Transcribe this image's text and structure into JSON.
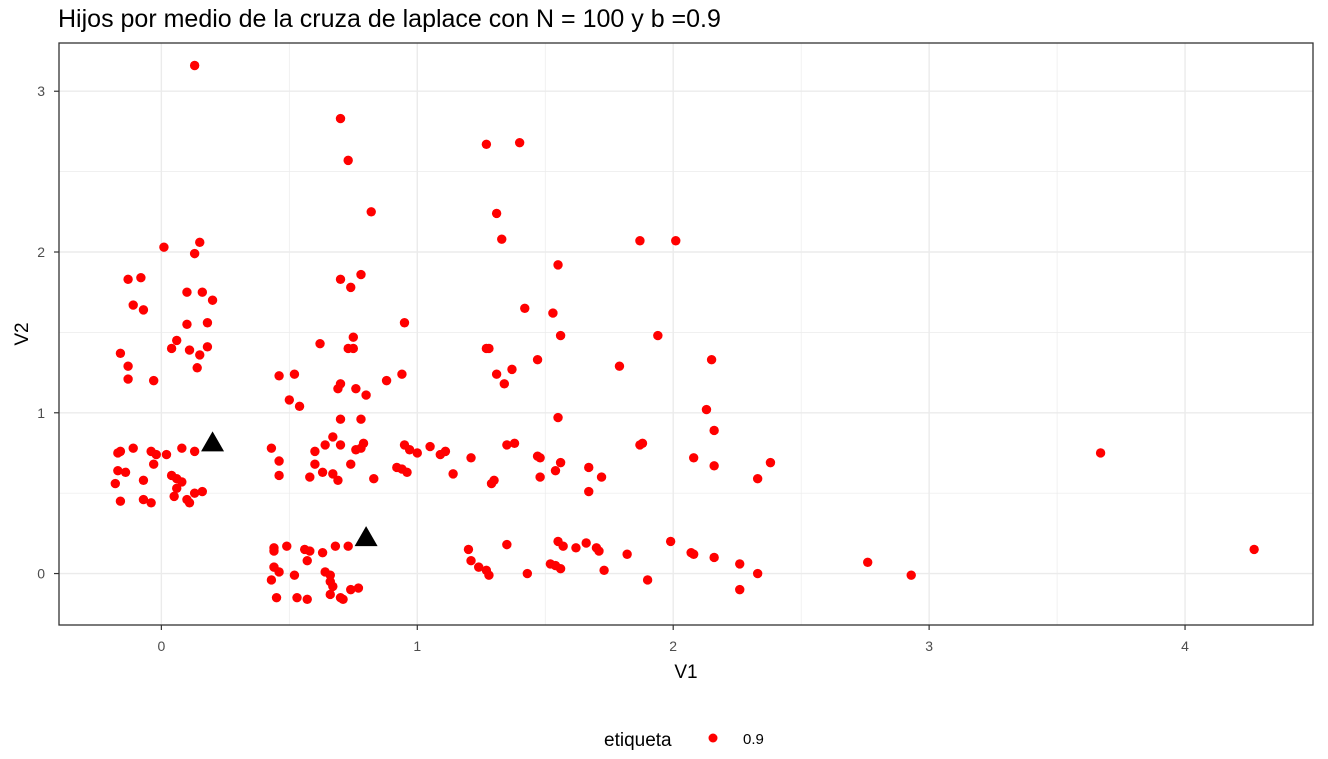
{
  "chart_data": {
    "type": "scatter",
    "title": "Hijos por medio de la cruza de laplace con N = 100 y b =0.9",
    "xlabel": "V1",
    "ylabel": "V2",
    "xlim": [
      -0.4,
      4.5
    ],
    "ylim": [
      -0.32,
      3.3
    ],
    "x_ticks": [
      0,
      1,
      2,
      3,
      4
    ],
    "y_ticks": [
      0,
      1,
      2,
      3
    ],
    "x_tick_labels": [
      "0",
      "1",
      "2",
      "3",
      "4"
    ],
    "y_tick_labels": [
      "0",
      "1",
      "2",
      "3"
    ],
    "grid": true,
    "legend": {
      "title": "etiqueta",
      "position": "bottom",
      "entries": [
        "0.9"
      ]
    },
    "colors": {
      "points": "#ff0000",
      "parents": "#000000",
      "panel_border": "#333333",
      "grid": "#ebebeb"
    },
    "series": [
      {
        "name": "0.9",
        "marker": "circle",
        "color": "#ff0000",
        "points": [
          [
            0.13,
            3.16
          ],
          [
            0.01,
            2.03
          ],
          [
            0.15,
            2.06
          ],
          [
            0.13,
            1.99
          ],
          [
            -0.13,
            1.83
          ],
          [
            -0.08,
            1.84
          ],
          [
            -0.11,
            1.67
          ],
          [
            -0.07,
            1.64
          ],
          [
            0.1,
            1.75
          ],
          [
            0.16,
            1.75
          ],
          [
            0.2,
            1.7
          ],
          [
            0.1,
            1.55
          ],
          [
            0.18,
            1.56
          ],
          [
            0.06,
            1.45
          ],
          [
            0.04,
            1.4
          ],
          [
            0.11,
            1.39
          ],
          [
            0.15,
            1.36
          ],
          [
            0.18,
            1.41
          ],
          [
            0.14,
            1.28
          ],
          [
            -0.16,
            1.37
          ],
          [
            -0.13,
            1.29
          ],
          [
            -0.13,
            1.21
          ],
          [
            -0.03,
            1.2
          ],
          [
            -0.16,
            0.76
          ],
          [
            -0.17,
            0.75
          ],
          [
            -0.11,
            0.78
          ],
          [
            -0.04,
            0.76
          ],
          [
            -0.02,
            0.74
          ],
          [
            0.02,
            0.74
          ],
          [
            0.08,
            0.78
          ],
          [
            0.13,
            0.76
          ],
          [
            -0.03,
            0.68
          ],
          [
            -0.17,
            0.64
          ],
          [
            -0.14,
            0.63
          ],
          [
            -0.18,
            0.56
          ],
          [
            -0.07,
            0.58
          ],
          [
            0.04,
            0.61
          ],
          [
            0.06,
            0.59
          ],
          [
            0.08,
            0.57
          ],
          [
            0.06,
            0.53
          ],
          [
            -0.16,
            0.45
          ],
          [
            -0.07,
            0.46
          ],
          [
            -0.04,
            0.44
          ],
          [
            0.05,
            0.48
          ],
          [
            0.1,
            0.46
          ],
          [
            0.11,
            0.44
          ],
          [
            0.13,
            0.5
          ],
          [
            0.16,
            0.51
          ],
          [
            0.7,
            2.83
          ],
          [
            0.73,
            2.57
          ],
          [
            0.82,
            2.25
          ],
          [
            0.7,
            1.83
          ],
          [
            0.78,
            1.86
          ],
          [
            0.74,
            1.78
          ],
          [
            0.62,
            1.43
          ],
          [
            0.75,
            1.47
          ],
          [
            0.73,
            1.4
          ],
          [
            0.75,
            1.4
          ],
          [
            0.95,
            1.56
          ],
          [
            0.46,
            1.23
          ],
          [
            0.52,
            1.24
          ],
          [
            0.7,
            1.18
          ],
          [
            0.69,
            1.15
          ],
          [
            0.76,
            1.15
          ],
          [
            0.8,
            1.11
          ],
          [
            0.88,
            1.2
          ],
          [
            0.94,
            1.24
          ],
          [
            0.5,
            1.08
          ],
          [
            0.54,
            1.04
          ],
          [
            0.7,
            0.96
          ],
          [
            0.78,
            0.96
          ],
          [
            0.43,
            0.78
          ],
          [
            0.6,
            0.76
          ],
          [
            0.64,
            0.8
          ],
          [
            0.67,
            0.85
          ],
          [
            0.7,
            0.8
          ],
          [
            0.76,
            0.77
          ],
          [
            0.78,
            0.78
          ],
          [
            0.79,
            0.81
          ],
          [
            0.95,
            0.8
          ],
          [
            0.97,
            0.77
          ],
          [
            1.0,
            0.75
          ],
          [
            1.05,
            0.79
          ],
          [
            1.09,
            0.74
          ],
          [
            1.11,
            0.76
          ],
          [
            1.21,
            0.72
          ],
          [
            0.46,
            0.7
          ],
          [
            0.6,
            0.68
          ],
          [
            0.74,
            0.68
          ],
          [
            0.46,
            0.61
          ],
          [
            0.58,
            0.6
          ],
          [
            0.63,
            0.63
          ],
          [
            0.67,
            0.62
          ],
          [
            0.69,
            0.58
          ],
          [
            0.83,
            0.59
          ],
          [
            0.92,
            0.66
          ],
          [
            0.94,
            0.65
          ],
          [
            0.96,
            0.63
          ],
          [
            1.14,
            0.62
          ],
          [
            0.44,
            0.16
          ],
          [
            0.44,
            0.14
          ],
          [
            0.49,
            0.17
          ],
          [
            0.56,
            0.15
          ],
          [
            0.58,
            0.14
          ],
          [
            0.63,
            0.13
          ],
          [
            0.68,
            0.17
          ],
          [
            0.73,
            0.17
          ],
          [
            0.57,
            0.08
          ],
          [
            0.44,
            0.04
          ],
          [
            0.46,
            0.01
          ],
          [
            0.52,
            -0.01
          ],
          [
            0.64,
            0.01
          ],
          [
            0.66,
            -0.01
          ],
          [
            0.66,
            -0.05
          ],
          [
            0.43,
            -0.04
          ],
          [
            0.67,
            -0.08
          ],
          [
            0.74,
            -0.1
          ],
          [
            0.77,
            -0.09
          ],
          [
            0.45,
            -0.15
          ],
          [
            0.53,
            -0.15
          ],
          [
            0.57,
            -0.16
          ],
          [
            0.66,
            -0.13
          ],
          [
            0.7,
            -0.15
          ],
          [
            0.71,
            -0.16
          ],
          [
            1.27,
            2.67
          ],
          [
            1.4,
            2.68
          ],
          [
            1.31,
            2.24
          ],
          [
            1.33,
            2.08
          ],
          [
            1.42,
            1.65
          ],
          [
            1.55,
            1.92
          ],
          [
            1.53,
            1.62
          ],
          [
            1.56,
            1.48
          ],
          [
            1.28,
            1.4
          ],
          [
            1.27,
            1.4
          ],
          [
            1.47,
            1.33
          ],
          [
            1.31,
            1.24
          ],
          [
            1.34,
            1.18
          ],
          [
            1.37,
            1.27
          ],
          [
            1.79,
            1.29
          ],
          [
            1.87,
            2.07
          ],
          [
            2.01,
            2.07
          ],
          [
            1.94,
            1.48
          ],
          [
            2.15,
            1.33
          ],
          [
            2.13,
            1.02
          ],
          [
            2.16,
            0.89
          ],
          [
            1.55,
            0.97
          ],
          [
            1.35,
            0.8
          ],
          [
            1.38,
            0.81
          ],
          [
            1.47,
            0.73
          ],
          [
            1.48,
            0.72
          ],
          [
            1.88,
            0.81
          ],
          [
            1.87,
            0.8
          ],
          [
            2.08,
            0.72
          ],
          [
            2.16,
            0.67
          ],
          [
            2.38,
            0.69
          ],
          [
            2.33,
            0.59
          ],
          [
            1.56,
            0.69
          ],
          [
            1.54,
            0.64
          ],
          [
            1.67,
            0.66
          ],
          [
            1.72,
            0.6
          ],
          [
            1.48,
            0.6
          ],
          [
            1.3,
            0.58
          ],
          [
            1.29,
            0.56
          ],
          [
            1.67,
            0.51
          ],
          [
            1.35,
            0.18
          ],
          [
            1.2,
            0.15
          ],
          [
            1.55,
            0.2
          ],
          [
            1.57,
            0.17
          ],
          [
            1.62,
            0.16
          ],
          [
            1.66,
            0.19
          ],
          [
            1.7,
            0.16
          ],
          [
            1.71,
            0.14
          ],
          [
            1.82,
            0.12
          ],
          [
            1.99,
            0.2
          ],
          [
            2.07,
            0.13
          ],
          [
            2.08,
            0.12
          ],
          [
            2.16,
            0.1
          ],
          [
            1.21,
            0.08
          ],
          [
            1.24,
            0.04
          ],
          [
            1.27,
            0.02
          ],
          [
            1.28,
            -0.01
          ],
          [
            1.43,
            0.0
          ],
          [
            1.52,
            0.06
          ],
          [
            1.54,
            0.05
          ],
          [
            1.56,
            0.03
          ],
          [
            1.73,
            0.02
          ],
          [
            1.9,
            -0.04
          ],
          [
            2.26,
            0.06
          ],
          [
            2.33,
            0.0
          ],
          [
            2.26,
            -0.1
          ],
          [
            2.76,
            0.07
          ],
          [
            2.93,
            -0.01
          ],
          [
            3.67,
            0.75
          ],
          [
            4.27,
            0.15
          ]
        ]
      },
      {
        "marker": "triangle",
        "color": "#000000",
        "points": [
          [
            0.2,
            0.81
          ],
          [
            0.8,
            0.22
          ]
        ]
      }
    ]
  }
}
